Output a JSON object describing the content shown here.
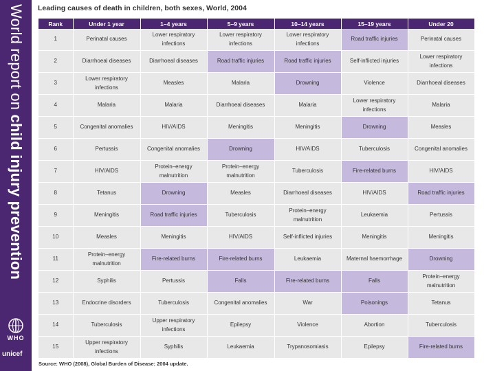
{
  "sidebar": {
    "title_light": "World report on ",
    "title_bold": "child injury prevention",
    "who_label": "WHO",
    "unicef_label": "unicef"
  },
  "table_title": "Leading causes of death in children, both sexes, World, 2004",
  "columns": [
    "Rank",
    "Under 1 year",
    "1–4 years",
    "5–9 years",
    "10–14 years",
    "15–19 years",
    "Under 20"
  ],
  "rows": [
    {
      "rank": "1",
      "cells": [
        "Perinatal causes",
        "Lower respiratory infections",
        "Lower respiratory infections",
        "Lower respiratory infections",
        "Road traffic injuries",
        "Perinatal causes"
      ]
    },
    {
      "rank": "2",
      "cells": [
        "Diarrhoeal diseases",
        "Diarrhoeal diseases",
        "Road traffic injuries",
        "Road traffic injuries",
        "Self-inflicted injuries",
        "Lower respiratory infections"
      ]
    },
    {
      "rank": "3",
      "cells": [
        "Lower respiratory infections",
        "Measles",
        "Malaria",
        "Drowning",
        "Violence",
        "Diarrhoeal diseases"
      ]
    },
    {
      "rank": "4",
      "cells": [
        "Malaria",
        "Malaria",
        "Diarrhoeal diseases",
        "Malaria",
        "Lower respiratory infections",
        "Malaria"
      ]
    },
    {
      "rank": "5",
      "cells": [
        "Congenital anomalies",
        "HIV/AIDS",
        "Meningitis",
        "Meningitis",
        "Drowning",
        "Measles"
      ]
    },
    {
      "rank": "6",
      "cells": [
        "Pertussis",
        "Congenital anomalies",
        "Drowning",
        "HIV/AIDS",
        "Tuberculosis",
        "Congenital anomalies"
      ]
    },
    {
      "rank": "7",
      "cells": [
        "HIV/AIDS",
        "Protein–energy malnutrition",
        "Protein–energy malnutrition",
        "Tuberculosis",
        "Fire-related burns",
        "HIV/AIDS"
      ]
    },
    {
      "rank": "8",
      "cells": [
        "Tetanus",
        "Drowning",
        "Measles",
        "Diarrhoeal diseases",
        "HIV/AIDS",
        "Road traffic injuries"
      ]
    },
    {
      "rank": "9",
      "cells": [
        "Meningitis",
        "Road traffic injuries",
        "Tuberculosis",
        "Protein–energy malnutrition",
        "Leukaemia",
        "Pertussis"
      ]
    },
    {
      "rank": "10",
      "cells": [
        "Measles",
        "Meningitis",
        "HIV/AIDS",
        "Self-inflicted injuries",
        "Meningitis",
        "Meningitis"
      ]
    },
    {
      "rank": "11",
      "cells": [
        "Protein–energy malnutrition",
        "Fire-related burns",
        "Fire-related burns",
        "Leukaemia",
        "Maternal haemorrhage",
        "Drowning"
      ]
    },
    {
      "rank": "12",
      "cells": [
        "Syphilis",
        "Pertussis",
        "Falls",
        "Fire-related burns",
        "Falls",
        "Protein–energy malnutrition"
      ]
    },
    {
      "rank": "13",
      "cells": [
        "Endocrine disorders",
        "Tuberculosis",
        "Congenital anomalies",
        "War",
        "Poisonings",
        "Tetanus"
      ]
    },
    {
      "rank": "14",
      "cells": [
        "Tuberculosis",
        "Upper respiratory infections",
        "Epilepsy",
        "Violence",
        "Abortion",
        "Tuberculosis"
      ]
    },
    {
      "rank": "15",
      "cells": [
        "Upper respiratory infections",
        "Syphilis",
        "Leukaemia",
        "Trypanosomiasis",
        "Epilepsy",
        "Fire-related burns"
      ]
    }
  ],
  "highlighted": [
    [
      0,
      4
    ],
    [
      1,
      2
    ],
    [
      1,
      3
    ],
    [
      2,
      3
    ],
    [
      4,
      4
    ],
    [
      5,
      2
    ],
    [
      6,
      4
    ],
    [
      7,
      1
    ],
    [
      7,
      5
    ],
    [
      8,
      1
    ],
    [
      10,
      1
    ],
    [
      10,
      2
    ],
    [
      10,
      5
    ],
    [
      11,
      2
    ],
    [
      11,
      3
    ],
    [
      11,
      4
    ],
    [
      12,
      4
    ],
    [
      14,
      5
    ]
  ],
  "colors": {
    "accent": "#4a2770",
    "highlight": "#c5b9de",
    "cell": "#e8e8e8"
  },
  "source": "Source: WHO (2008), Global Burden of Disease: 2004 update."
}
